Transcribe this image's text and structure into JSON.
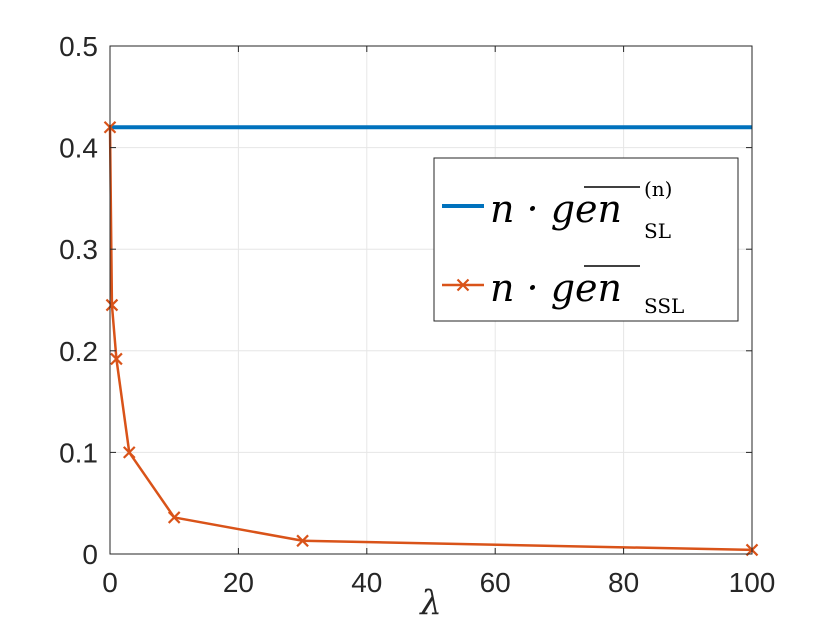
{
  "chart_data": {
    "type": "line",
    "xlabel": "λ",
    "ylabel": "",
    "xlim": [
      0,
      100
    ],
    "ylim": [
      0,
      0.5
    ],
    "xticks": [
      0,
      20,
      40,
      60,
      80,
      100
    ],
    "yticks": [
      0,
      0.1,
      0.2,
      0.3,
      0.4,
      0.5
    ],
    "grid": true,
    "legend_position": "upper-right",
    "series": [
      {
        "name": "n · gen_SL^(n)",
        "legend_main": "n · gen",
        "legend_sub": "SL",
        "legend_sup": "(n)",
        "color": "#0072BD",
        "marker": "none",
        "x": [
          0,
          100
        ],
        "y": [
          0.42,
          0.42
        ]
      },
      {
        "name": "n · gen_SSL",
        "legend_main": "n · gen",
        "legend_sub": "SSL",
        "legend_sup": "",
        "color": "#D95319",
        "marker": "x",
        "x": [
          0,
          0.3,
          1,
          3,
          10,
          30,
          100
        ],
        "y": [
          0.42,
          0.245,
          0.192,
          0.1,
          0.036,
          0.013,
          0.004
        ]
      }
    ]
  }
}
